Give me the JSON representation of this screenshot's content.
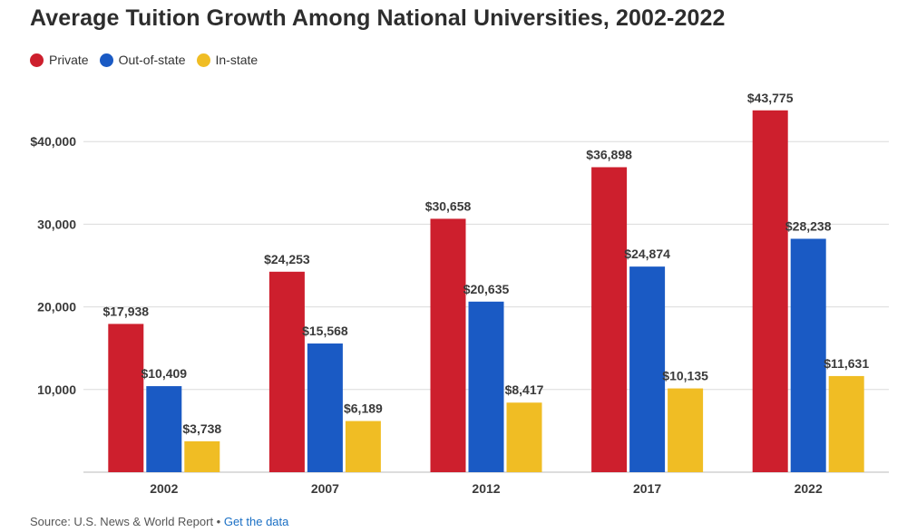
{
  "chart_data": {
    "type": "bar",
    "title": "Average Tuition Growth Among National Universities, 2002-2022",
    "categories": [
      "2002",
      "2007",
      "2012",
      "2017",
      "2022"
    ],
    "series": [
      {
        "name": "Private",
        "color": "#cd1f2d",
        "values": [
          17938,
          24253,
          30658,
          36898,
          43775
        ],
        "labels": [
          "$17,938",
          "$24,253",
          "$30,658",
          "$36,898",
          "$43,775"
        ]
      },
      {
        "name": "Out-of-state",
        "color": "#1a5ac4",
        "values": [
          10409,
          15568,
          20635,
          24874,
          28238
        ],
        "labels": [
          "$10,409",
          "$15,568",
          "$20,635",
          "$24,874",
          "$28,238"
        ]
      },
      {
        "name": "In-state",
        "color": "#f0bd24",
        "values": [
          3738,
          6189,
          8417,
          10135,
          11631
        ],
        "labels": [
          "$3,738",
          "$6,189",
          "$8,417",
          "$10,135",
          "$11,631"
        ]
      }
    ],
    "yticks": [
      10000,
      20000,
      30000,
      40000
    ],
    "ytick_labels": [
      "10,000",
      "20,000",
      "30,000",
      "$40,000"
    ],
    "ylim": [
      0,
      46000
    ],
    "legend_position": "top-left",
    "grid": true
  },
  "footer": {
    "source_text": "Source: U.S. News & World Report • ",
    "link_text": "Get the data"
  }
}
